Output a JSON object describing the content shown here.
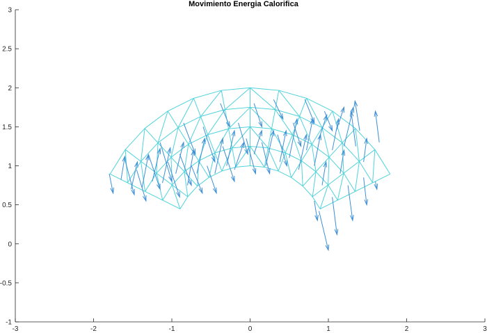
{
  "chart_data": {
    "type": "quiver",
    "title": "Movimiento Energia Calorifica",
    "xlabel": "",
    "ylabel": "",
    "xlim": [
      -3,
      3
    ],
    "ylim": [
      -1,
      3
    ],
    "xticks": [
      -3,
      -2,
      -1,
      0,
      1,
      2,
      3
    ],
    "xtick_labels": [
      "-3",
      "-2",
      "-1",
      "0",
      "1",
      "2",
      "3"
    ],
    "yticks": [
      -1,
      -0.5,
      0,
      0.5,
      1,
      1.5,
      2,
      2.5,
      3
    ],
    "ytick_labels": [
      "-1",
      "-0.5",
      "0",
      "0.5",
      "1",
      "1.5",
      "2",
      "2.5",
      "3"
    ],
    "grid": false,
    "box": "left-bottom axes only",
    "mesh": {
      "shape": "annular sector (triangulated)",
      "inner_radius": 1,
      "outer_radius": 2,
      "angle_start_deg": 26.57,
      "angle_end_deg": 153.43,
      "radial_divisions": 4,
      "angular_divisions": 12,
      "color": "#4fd3da"
    },
    "arrow_color": "#3d8fd6",
    "arrows": [
      {
        "x": -1.8,
        "y": 0.9,
        "u": 0.05,
        "v": -0.25
      },
      {
        "x": -1.65,
        "y": 0.82,
        "u": 0.05,
        "v": 0.3
      },
      {
        "x": -1.6,
        "y": 1.08,
        "u": 0.12,
        "v": -0.45
      },
      {
        "x": -1.52,
        "y": 0.7,
        "u": 0.08,
        "v": 0.35
      },
      {
        "x": -1.45,
        "y": 0.95,
        "u": 0.12,
        "v": -0.4
      },
      {
        "x": -1.38,
        "y": 0.72,
        "u": 0.08,
        "v": 0.42
      },
      {
        "x": -1.3,
        "y": 1.15,
        "u": 0.15,
        "v": -0.45
      },
      {
        "x": -1.25,
        "y": 0.8,
        "u": 0.1,
        "v": 0.42
      },
      {
        "x": -1.15,
        "y": 1.3,
        "u": 0.15,
        "v": -0.5
      },
      {
        "x": -1.12,
        "y": 0.78,
        "u": 0.1,
        "v": 0.45
      },
      {
        "x": -1.05,
        "y": 1.05,
        "u": 0.15,
        "v": -0.45
      },
      {
        "x": -0.95,
        "y": 0.9,
        "u": 0.1,
        "v": 0.4
      },
      {
        "x": -0.9,
        "y": 1.15,
        "u": 0.15,
        "v": -0.4
      },
      {
        "x": -0.85,
        "y": 1.55,
        "u": 0.15,
        "v": -0.4
      },
      {
        "x": -0.8,
        "y": 0.75,
        "u": 0.08,
        "v": 0.45
      },
      {
        "x": -0.75,
        "y": 1.0,
        "u": 0.14,
        "v": -0.35
      },
      {
        "x": -0.68,
        "y": 0.9,
        "u": 0.1,
        "v": 0.45
      },
      {
        "x": -0.6,
        "y": 1.5,
        "u": 0.15,
        "v": -0.45
      },
      {
        "x": -0.55,
        "y": 1.0,
        "u": 0.12,
        "v": -0.35
      },
      {
        "x": -0.45,
        "y": 0.9,
        "u": 0.1,
        "v": 0.45
      },
      {
        "x": -0.38,
        "y": 1.8,
        "u": 0.12,
        "v": -0.3
      },
      {
        "x": -0.35,
        "y": 1.25,
        "u": 0.15,
        "v": -0.45
      },
      {
        "x": -0.3,
        "y": 1.0,
        "u": 0.1,
        "v": 0.45
      },
      {
        "x": -0.2,
        "y": 0.95,
        "u": 0.12,
        "v": 0.35
      },
      {
        "x": -0.15,
        "y": 1.55,
        "u": 0.12,
        "v": -0.4
      },
      {
        "x": -0.05,
        "y": 1.35,
        "u": 0.12,
        "v": -0.45
      },
      {
        "x": 0.05,
        "y": 1.8,
        "u": 0.1,
        "v": -0.3
      },
      {
        "x": 0.05,
        "y": 1.15,
        "u": 0.1,
        "v": 0.3
      },
      {
        "x": 0.15,
        "y": 1.3,
        "u": 0.1,
        "v": -0.4
      },
      {
        "x": 0.2,
        "y": 1.0,
        "u": 0.1,
        "v": 0.45
      },
      {
        "x": 0.3,
        "y": 1.85,
        "u": 0.12,
        "v": -0.25
      },
      {
        "x": 0.35,
        "y": 1.4,
        "u": 0.12,
        "v": -0.4
      },
      {
        "x": 0.38,
        "y": 1.05,
        "u": 0.08,
        "v": 0.4
      },
      {
        "x": 0.5,
        "y": 1.1,
        "u": 0.1,
        "v": 0.5
      },
      {
        "x": 0.55,
        "y": 1.55,
        "u": 0.1,
        "v": -0.3
      },
      {
        "x": 0.62,
        "y": 0.95,
        "u": 0.1,
        "v": 0.45
      },
      {
        "x": 0.7,
        "y": 1.85,
        "u": 0.12,
        "v": -0.3
      },
      {
        "x": 0.72,
        "y": 1.2,
        "u": 0.08,
        "v": 0.4
      },
      {
        "x": 0.82,
        "y": 1.0,
        "u": 0.08,
        "v": 0.4
      },
      {
        "x": 0.88,
        "y": 1.35,
        "u": 0.1,
        "v": 0.3
      },
      {
        "x": 0.95,
        "y": 1.7,
        "u": 0.1,
        "v": -0.25
      },
      {
        "x": 0.92,
        "y": 0.75,
        "u": 0.05,
        "v": 0.3
      },
      {
        "x": 1.05,
        "y": 1.2,
        "u": 0.08,
        "v": 0.4
      },
      {
        "x": 1.1,
        "y": 1.45,
        "u": 0.1,
        "v": 0.3
      },
      {
        "x": 1.2,
        "y": 1.25,
        "u": 0.12,
        "v": 0.5
      },
      {
        "x": 1.15,
        "y": 0.9,
        "u": 0.05,
        "v": 0.3
      },
      {
        "x": 1.35,
        "y": 1.25,
        "u": -0.06,
        "v": 0.45
      },
      {
        "x": 1.4,
        "y": 1.45,
        "u": -0.06,
        "v": 0.38
      },
      {
        "x": 1.45,
        "y": 1.05,
        "u": 0.04,
        "v": 0.3
      },
      {
        "x": 1.65,
        "y": 1.3,
        "u": -0.05,
        "v": 0.4
      },
      {
        "x": 0.82,
        "y": 0.55,
        "u": 0.04,
        "v": -0.25
      },
      {
        "x": 0.88,
        "y": 0.42,
        "u": 0.12,
        "v": -0.5
      },
      {
        "x": 1.05,
        "y": 0.6,
        "u": 0.06,
        "v": -0.48
      },
      {
        "x": 1.25,
        "y": 0.75,
        "u": 0.06,
        "v": -0.45
      },
      {
        "x": 1.45,
        "y": 0.85,
        "u": 0.04,
        "v": -0.35
      },
      {
        "x": 1.6,
        "y": 0.8,
        "u": 0.02,
        "v": -0.1
      }
    ]
  }
}
